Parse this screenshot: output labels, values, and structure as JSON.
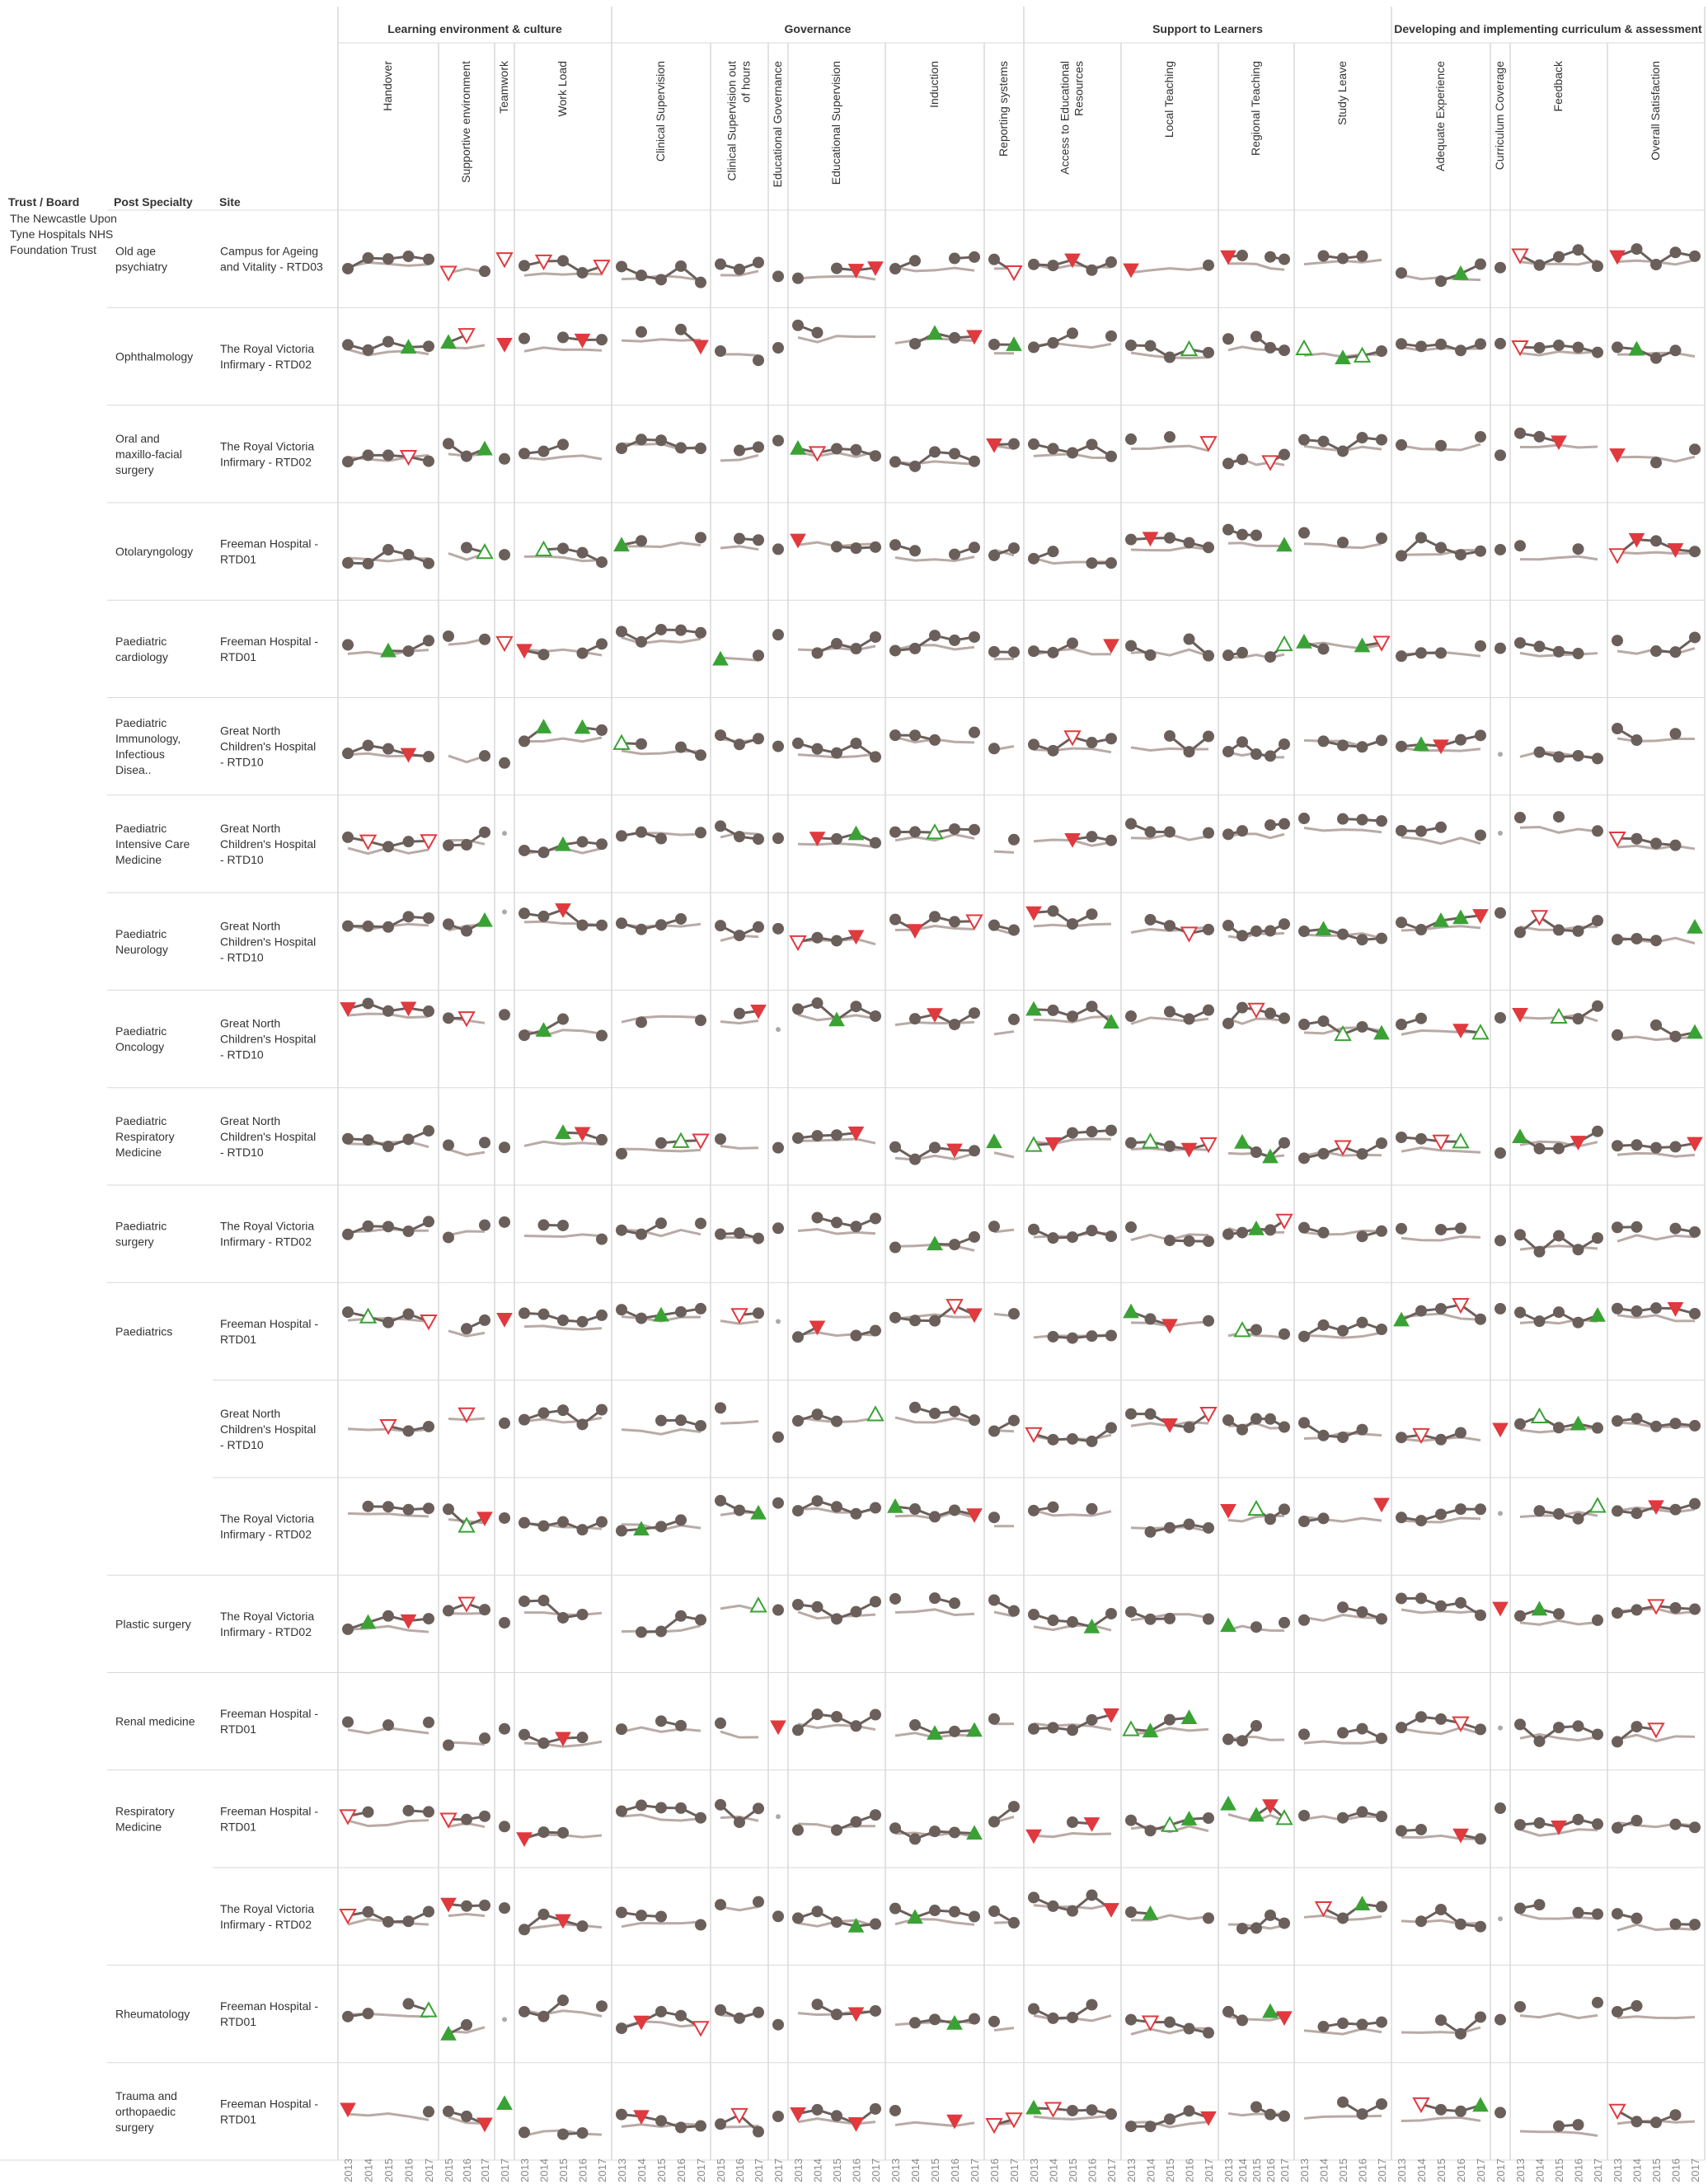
{
  "chart_data": {
    "type": "line",
    "title": "",
    "row_headers": [
      "Trust / Board",
      "Post Specialty",
      "Site"
    ],
    "trust": "The Newcastle Upon Tyne Hospitals NHS Foundation Trust",
    "groups": [
      {
        "label": "Learning environment & culture",
        "indicators": [
          "Handover",
          "Supportive environment",
          "Teamwork",
          "Work Load"
        ]
      },
      {
        "label": "Governance",
        "indicators": [
          "Clinical Supervision",
          "Clinical Supervision out of hours",
          "Educational Governance",
          "Educational Supervision",
          "Induction",
          "Reporting systems"
        ]
      },
      {
        "label": "Support to Learners",
        "indicators": [
          "Access to Educational Resources",
          "Local Teaching",
          "Regional Teaching",
          "Study Leave"
        ]
      },
      {
        "label": "Developing and implementing curriculum & assessment",
        "indicators": [
          "Adequate Experience",
          "Curriculum Coverage",
          "Feedback",
          "Overall Satisfaction"
        ]
      }
    ],
    "indicator_years": [
      [
        2013,
        2014,
        2015,
        2016,
        2017
      ],
      [
        2015,
        2016,
        2017
      ],
      [
        2017
      ],
      [
        2013,
        2014,
        2015,
        2016,
        2017
      ],
      [
        2013,
        2014,
        2015,
        2016,
        2017
      ],
      [
        2015,
        2016,
        2017
      ],
      [
        2017
      ],
      [
        2013,
        2014,
        2015,
        2016,
        2017
      ],
      [
        2013,
        2014,
        2015,
        2016,
        2017
      ],
      [
        2016,
        2017
      ],
      [
        2013,
        2014,
        2015,
        2016,
        2017
      ],
      [
        2013,
        2014,
        2015,
        2016,
        2017
      ],
      [
        2013,
        2014,
        2015,
        2016,
        2017
      ],
      [
        2013,
        2014,
        2015,
        2016,
        2017
      ],
      [
        2013,
        2014,
        2015,
        2016,
        2017
      ],
      [
        2017
      ],
      [
        2013,
        2014,
        2015,
        2016,
        2017
      ],
      [
        2013,
        2014,
        2015,
        2016,
        2017
      ]
    ],
    "rows": [
      {
        "specialty": "Old age psychiatry",
        "site": "Campus for Ageing and Vitality - RTD03"
      },
      {
        "specialty": "Ophthalmology",
        "site": "The Royal Victoria Infirmary - RTD02"
      },
      {
        "specialty": "Oral and maxillo-facial surgery",
        "site": "The Royal Victoria Infirmary - RTD02"
      },
      {
        "specialty": "Otolaryngology",
        "site": "Freeman Hospital - RTD01"
      },
      {
        "specialty": "Paediatric cardiology",
        "site": "Freeman Hospital - RTD01"
      },
      {
        "specialty": "Paediatric Immunology, Infectious Disea..",
        "site": "Great North Children's Hospital - RTD10"
      },
      {
        "specialty": "Paediatric Intensive Care Medicine",
        "site": "Great North Children's Hospital - RTD10"
      },
      {
        "specialty": "Paediatric Neurology",
        "site": "Great North Children's Hospital - RTD10"
      },
      {
        "specialty": "Paediatric Oncology",
        "site": "Great North Children's Hospital - RTD10"
      },
      {
        "specialty": "Paediatric Respiratory Medicine",
        "site": "Great North Children's Hospital - RTD10"
      },
      {
        "specialty": "Paediatric surgery",
        "site": "The Royal Victoria Infirmary - RTD02"
      },
      {
        "specialty": "Paediatrics",
        "site": "Freeman Hospital - RTD01"
      },
      {
        "specialty": "",
        "site": "Great North Children's Hospital - RTD10"
      },
      {
        "specialty": "",
        "site": "The Royal Victoria Infirmary - RTD02"
      },
      {
        "specialty": "Plastic surgery",
        "site": "The Royal Victoria Infirmary - RTD02"
      },
      {
        "specialty": "Renal medicine",
        "site": "Freeman Hospital - RTD01"
      },
      {
        "specialty": "Respiratory Medicine",
        "site": "Freeman Hospital - RTD01"
      },
      {
        "specialty": "",
        "site": "The Royal Victoria Infirmary - RTD02"
      },
      {
        "specialty": "Rheumatology",
        "site": "Freeman Hospital - RTD01"
      },
      {
        "specialty": "Trauma and orthopaedic surgery",
        "site": "Freeman Hospital - RTD01"
      }
    ],
    "colors": {
      "point": "#6b5f5b",
      "benchmark": "#b9aaa6",
      "above": "#3aa235",
      "below": "#e0393e",
      "gridline": "#d9d9d9",
      "text": "#333333"
    }
  }
}
